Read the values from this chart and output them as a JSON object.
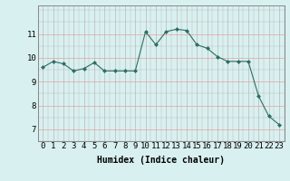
{
  "x": [
    0,
    1,
    2,
    3,
    4,
    5,
    6,
    7,
    8,
    9,
    10,
    11,
    12,
    13,
    14,
    15,
    16,
    17,
    18,
    19,
    20,
    21,
    22,
    23
  ],
  "y": [
    9.6,
    9.85,
    9.75,
    9.45,
    9.55,
    9.8,
    9.45,
    9.45,
    9.45,
    9.45,
    11.1,
    10.55,
    11.1,
    11.2,
    11.15,
    10.55,
    10.4,
    10.05,
    9.85,
    9.85,
    9.85,
    8.4,
    7.55,
    7.2
  ],
  "line_color": "#2d6e63",
  "marker": "D",
  "marker_size": 2.0,
  "bg_color": "#d9f0f0",
  "grid_color_x": "#b8b8b8",
  "grid_color_y_major": "#e8a0a0",
  "grid_color_y_minor": "#b8b8b8",
  "xlabel": "Humidex (Indice chaleur)",
  "ylim": [
    6.5,
    12.2
  ],
  "xlim": [
    -0.5,
    23.5
  ],
  "yticks": [
    7,
    8,
    9,
    10,
    11
  ],
  "xticks": [
    0,
    1,
    2,
    3,
    4,
    5,
    6,
    7,
    8,
    9,
    10,
    11,
    12,
    13,
    14,
    15,
    16,
    17,
    18,
    19,
    20,
    21,
    22,
    23
  ],
  "xlabel_fontsize": 7.0,
  "tick_fontsize": 6.5
}
